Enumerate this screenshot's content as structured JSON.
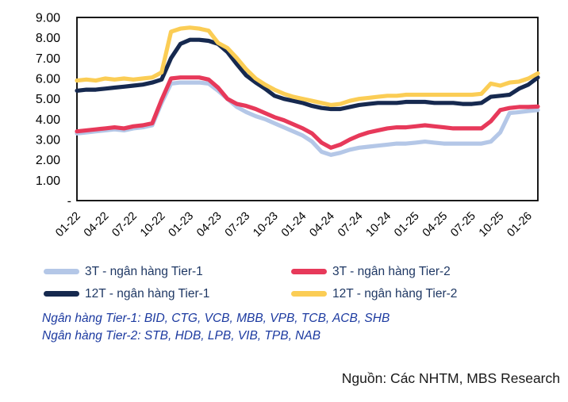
{
  "colors": {
    "tier1_3m": "#b4c7e7",
    "tier2_3m": "#e7395a",
    "tier1_12m": "#16294f",
    "tier2_12m": "#fbcd55",
    "legend_text": "#1f3864",
    "footnote_text": "#1c3aa0",
    "axis_text": "#000000",
    "plot_border": "#000000",
    "source_text": "#1a1a1a"
  },
  "chart_data": {
    "type": "line",
    "title": "",
    "xlabel": "",
    "ylabel": "",
    "ylim": [
      0,
      9
    ],
    "grid": false,
    "legend_position": "bottom",
    "y_ticks": [
      {
        "label": "9.00",
        "value": 9
      },
      {
        "label": "8.00",
        "value": 8
      },
      {
        "label": "7.00",
        "value": 7
      },
      {
        "label": "6.00",
        "value": 6
      },
      {
        "label": "5.00",
        "value": 5
      },
      {
        "label": "4.00",
        "value": 4
      },
      {
        "label": "3.00",
        "value": 3
      },
      {
        "label": "2.00",
        "value": 2
      },
      {
        "label": "1.00",
        "value": 1
      },
      {
        "label": "-",
        "value": 0
      }
    ],
    "x_tick_labels": [
      "01-22",
      "04-22",
      "07-22",
      "10-22",
      "01-23",
      "04-23",
      "07-23",
      "10-23",
      "01-24",
      "04-24",
      "07-24",
      "10-24",
      "01-25",
      "04-25",
      "07-25",
      "10-25",
      "01-26"
    ],
    "categories": [
      "01-22",
      "02-22",
      "03-22",
      "04-22",
      "05-22",
      "06-22",
      "07-22",
      "08-22",
      "09-22",
      "10-22",
      "11-22",
      "12-22",
      "01-23",
      "02-23",
      "03-23",
      "04-23",
      "05-23",
      "06-23",
      "07-23",
      "08-23",
      "09-23",
      "10-23",
      "11-23",
      "12-23",
      "01-24",
      "02-24",
      "03-24",
      "04-24",
      "05-24",
      "06-24",
      "07-24",
      "08-24",
      "09-24",
      "10-24",
      "11-24",
      "12-24",
      "01-25",
      "02-25",
      "03-25",
      "04-25",
      "05-25",
      "06-25",
      "07-25",
      "08-25",
      "09-25",
      "10-25",
      "11-25",
      "12-25",
      "01-26",
      "02-26"
    ],
    "series": [
      {
        "name": "3T - ngân hàng Tier-1",
        "color_key": "tier1_3m",
        "values": [
          3.3,
          3.35,
          3.4,
          3.45,
          3.5,
          3.45,
          3.55,
          3.6,
          3.7,
          4.8,
          5.75,
          5.8,
          5.8,
          5.8,
          5.75,
          5.4,
          5.0,
          4.6,
          4.35,
          4.15,
          4.0,
          3.8,
          3.6,
          3.4,
          3.2,
          2.9,
          2.4,
          2.25,
          2.35,
          2.5,
          2.6,
          2.65,
          2.7,
          2.75,
          2.8,
          2.8,
          2.85,
          2.9,
          2.85,
          2.8,
          2.8,
          2.8,
          2.8,
          2.8,
          2.9,
          3.35,
          4.3,
          4.35,
          4.4,
          4.45
        ]
      },
      {
        "name": "3T - ngân hàng Tier-2",
        "color_key": "tier2_3m",
        "values": [
          3.4,
          3.45,
          3.5,
          3.55,
          3.6,
          3.55,
          3.65,
          3.7,
          3.8,
          4.95,
          6.0,
          6.05,
          6.05,
          6.05,
          5.95,
          5.55,
          5.0,
          4.75,
          4.65,
          4.5,
          4.3,
          4.1,
          3.95,
          3.75,
          3.55,
          3.3,
          2.85,
          2.6,
          2.75,
          3.0,
          3.2,
          3.35,
          3.45,
          3.55,
          3.6,
          3.6,
          3.65,
          3.7,
          3.65,
          3.6,
          3.55,
          3.55,
          3.55,
          3.55,
          3.9,
          4.45,
          4.55,
          4.6,
          4.6,
          4.62
        ]
      },
      {
        "name": "12T - ngân hàng Tier-1",
        "color_key": "tier1_12m",
        "values": [
          5.4,
          5.45,
          5.45,
          5.5,
          5.55,
          5.6,
          5.65,
          5.7,
          5.8,
          5.95,
          7.0,
          7.7,
          7.9,
          7.9,
          7.85,
          7.7,
          7.3,
          6.7,
          6.15,
          5.8,
          5.5,
          5.15,
          5.0,
          4.9,
          4.8,
          4.65,
          4.55,
          4.5,
          4.5,
          4.6,
          4.7,
          4.75,
          4.8,
          4.8,
          4.8,
          4.85,
          4.85,
          4.85,
          4.8,
          4.8,
          4.8,
          4.75,
          4.75,
          4.8,
          5.1,
          5.15,
          5.2,
          5.5,
          5.7,
          6.05
        ]
      },
      {
        "name": "12T - ngân hàng Tier-2",
        "color_key": "tier2_12m",
        "values": [
          5.9,
          5.95,
          5.9,
          6.0,
          5.95,
          6.0,
          5.95,
          6.0,
          6.05,
          6.3,
          8.3,
          8.45,
          8.5,
          8.45,
          8.35,
          7.75,
          7.5,
          7.0,
          6.45,
          6.0,
          5.7,
          5.45,
          5.25,
          5.1,
          5.0,
          4.9,
          4.8,
          4.7,
          4.75,
          4.9,
          5.0,
          5.05,
          5.1,
          5.15,
          5.15,
          5.2,
          5.2,
          5.2,
          5.2,
          5.2,
          5.2,
          5.2,
          5.2,
          5.25,
          5.75,
          5.65,
          5.8,
          5.85,
          6.0,
          6.25
        ]
      }
    ]
  },
  "legend": {
    "items": [
      {
        "label": "3T - ngân hàng Tier-1",
        "color_key": "tier1_3m"
      },
      {
        "label": "3T - ngân hàng Tier-2",
        "color_key": "tier2_3m"
      },
      {
        "label": "12T - ngân hàng Tier-1",
        "color_key": "tier1_12m"
      },
      {
        "label": "12T - ngân hàng Tier-2",
        "color_key": "tier2_12m"
      }
    ]
  },
  "footnotes": {
    "line1": "Ngân hàng Tier-1: BID, CTG, VCB, MBB, VPB, TCB, ACB, SHB",
    "line2": "Ngân hàng Tier-2: STB, HDB, LPB, VIB, TPB, NAB"
  },
  "source": {
    "text": "Nguồn: Các NHTM, MBS Research"
  }
}
